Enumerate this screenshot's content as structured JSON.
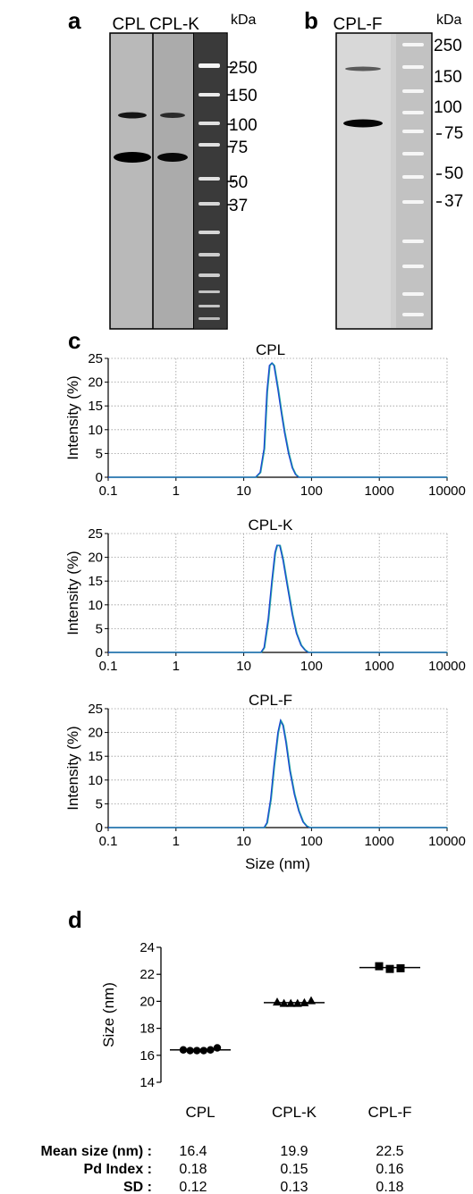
{
  "panel_labels": {
    "a": "a",
    "b": "b",
    "c": "c",
    "d": "d"
  },
  "gel_a": {
    "lanes": [
      "CPL",
      "CPL-K"
    ],
    "kda_label": "kDa",
    "markers": [
      "250",
      "150",
      "100",
      "75",
      "50",
      "37"
    ]
  },
  "gel_b": {
    "lanes": [
      "CPL-F"
    ],
    "kda_label": "kDa",
    "markers": [
      "250",
      "150",
      "100",
      "75",
      "50",
      "37"
    ]
  },
  "chart_data": [
    {
      "type": "line",
      "title": "CPL",
      "xlabel": "",
      "ylabel": "Intensity (%)",
      "xscale": "log",
      "xlim": [
        0.1,
        10000
      ],
      "ylim": [
        0,
        25
      ],
      "xticks": [
        "0.1",
        "1",
        "10",
        "100",
        "1000",
        "10000"
      ],
      "yticks": [
        "0",
        "5",
        "10",
        "15",
        "20",
        "25"
      ],
      "grid": true,
      "x": [
        0.1,
        15,
        17.5,
        20,
        22,
        24,
        26,
        28,
        32,
        36,
        40,
        46,
        52,
        58,
        65,
        10000
      ],
      "y": [
        0,
        0,
        1,
        6,
        18,
        23.5,
        24,
        23.5,
        18.5,
        13.5,
        9.5,
        5,
        2,
        0.6,
        0,
        0
      ]
    },
    {
      "type": "line",
      "title": "CPL-K",
      "xlabel": "",
      "ylabel": "Intensity (%)",
      "xscale": "log",
      "xlim": [
        0.1,
        10000
      ],
      "ylim": [
        0,
        25
      ],
      "xticks": [
        "0.1",
        "1",
        "10",
        "100",
        "1000",
        "10000"
      ],
      "yticks": [
        "0",
        "5",
        "10",
        "15",
        "20",
        "25"
      ],
      "grid": true,
      "x": [
        0.1,
        18,
        20,
        23,
        26,
        29,
        31,
        34,
        38,
        44,
        52,
        60,
        70,
        80,
        90,
        10000
      ],
      "y": [
        0,
        0,
        1,
        7,
        15,
        21,
        22.5,
        22.5,
        19.5,
        14,
        8,
        4,
        1.5,
        0.5,
        0,
        0
      ]
    },
    {
      "type": "line",
      "title": "CPL-F",
      "xlabel": "Size (nm)",
      "ylabel": "Intensity (%)",
      "xscale": "log",
      "xlim": [
        0.1,
        10000
      ],
      "ylim": [
        0,
        25
      ],
      "xticks": [
        "0.1",
        "1",
        "10",
        "100",
        "1000",
        "10000"
      ],
      "yticks": [
        "0",
        "5",
        "10",
        "15",
        "20",
        "25"
      ],
      "grid": true,
      "x": [
        0.1,
        20,
        22,
        25,
        28,
        32,
        35,
        38,
        42,
        48,
        56,
        65,
        75,
        85,
        95,
        10000
      ],
      "y": [
        0,
        0,
        1,
        6,
        13,
        20,
        22.5,
        21.5,
        18,
        12,
        7,
        3.5,
        1.2,
        0.3,
        0,
        0
      ]
    },
    {
      "type": "scatter",
      "title": "",
      "xlabel": "",
      "ylabel": "Size (nm)",
      "ylim": [
        14,
        24
      ],
      "yticks": [
        "14",
        "16",
        "18",
        "20",
        "22",
        "24"
      ],
      "grid": false,
      "categories": [
        "CPL",
        "CPL-K",
        "CPL-F"
      ],
      "series": [
        {
          "category": "CPL",
          "marker": "circle",
          "values": [
            16.4,
            16.35,
            16.35,
            16.35,
            16.4,
            16.55
          ],
          "mean": 16.4
        },
        {
          "category": "CPL-K",
          "marker": "triangle",
          "values": [
            19.95,
            19.85,
            19.85,
            19.85,
            19.9,
            20.05
          ],
          "mean": 19.9
        },
        {
          "category": "CPL-F",
          "marker": "square",
          "values": [
            22.6,
            22.4,
            22.45
          ],
          "mean": 22.5
        }
      ]
    }
  ],
  "stats": {
    "labels": [
      "Mean size (nm) :",
      "Pd Index :",
      "SD :"
    ],
    "rows": [
      [
        "16.4",
        "19.9",
        "22.5"
      ],
      [
        "0.18",
        "0.15",
        "0.16"
      ],
      [
        "0.12",
        "0.13",
        "0.18"
      ]
    ]
  }
}
